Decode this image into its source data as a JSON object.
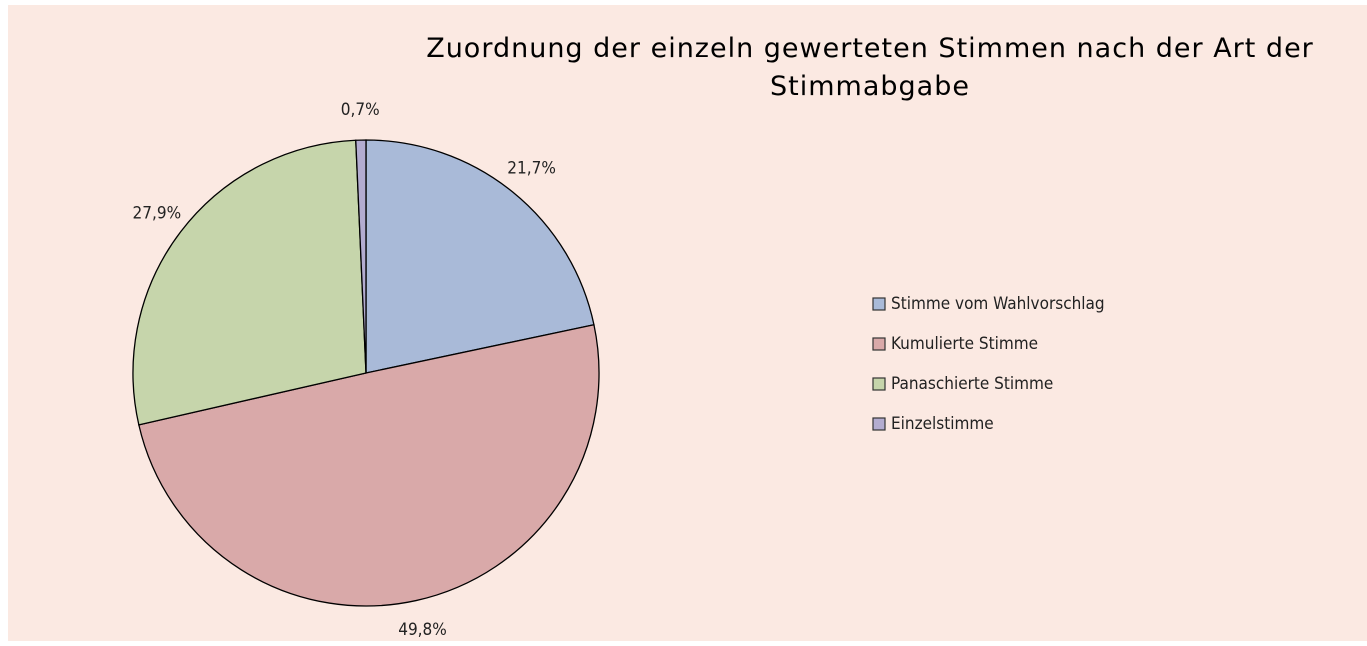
{
  "chart_data": {
    "type": "pie",
    "title": "Zuordnung der einzeln gewerteten Stimmen nach der Art der Stimmabgabe",
    "categories": [
      "Stimme vom Wahlvorschlag",
      "Kumulierte Stimme",
      "Panaschierte Stimme",
      "Einzelstimme"
    ],
    "values": [
      21.7,
      49.8,
      27.9,
      0.7
    ],
    "value_labels": [
      "21,7%",
      "49,8%",
      "27,9%",
      "0,7%"
    ],
    "colors": [
      "#a9bad8",
      "#d9a9a9",
      "#c6d5ab",
      "#b3acd0"
    ],
    "legend": "right"
  }
}
